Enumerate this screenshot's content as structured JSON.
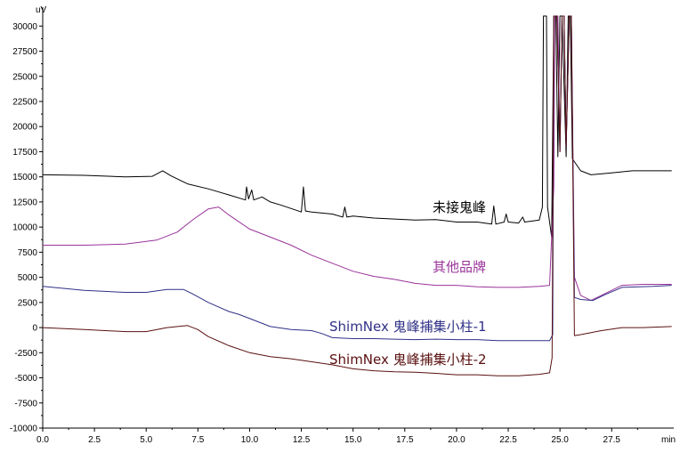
{
  "chart_data": {
    "type": "line",
    "ylabel": "uV",
    "xlabel": "min",
    "xlim": [
      0,
      30.5
    ],
    "ylim": [
      -10000,
      31000
    ],
    "x_ticks": [
      "0.0",
      "2.5",
      "5.0",
      "7.5",
      "10.0",
      "12.5",
      "15.0",
      "17.5",
      "20.0",
      "22.5",
      "25.0",
      "27.5"
    ],
    "y_ticks": [
      "30000",
      "27500",
      "25000",
      "22500",
      "20000",
      "17500",
      "15000",
      "12500",
      "10000",
      "7500",
      "5000",
      "2500",
      "0",
      "-2500",
      "-5000",
      "-7500",
      "-10000"
    ],
    "grid": false,
    "series": [
      {
        "name": "未接鬼峰",
        "color": "#000000",
        "points": [
          [
            0,
            15200
          ],
          [
            2,
            15150
          ],
          [
            4,
            15000
          ],
          [
            5.3,
            15050
          ],
          [
            5.8,
            15600
          ],
          [
            6.2,
            15100
          ],
          [
            7,
            14300
          ],
          [
            8,
            13800
          ],
          [
            9,
            13200
          ],
          [
            9.8,
            12700
          ],
          [
            9.85,
            14000
          ],
          [
            9.95,
            12800
          ],
          [
            10.1,
            13700
          ],
          [
            10.2,
            12700
          ],
          [
            10.6,
            13000
          ],
          [
            11,
            12500
          ],
          [
            11.5,
            12200
          ],
          [
            12.5,
            11500
          ],
          [
            12.6,
            14000
          ],
          [
            12.7,
            11600
          ],
          [
            13,
            11500
          ],
          [
            14,
            11300
          ],
          [
            14.5,
            11000
          ],
          [
            14.6,
            12000
          ],
          [
            14.7,
            11000
          ],
          [
            15,
            11100
          ],
          [
            16,
            10900
          ],
          [
            17,
            10800
          ],
          [
            18,
            10700
          ],
          [
            19,
            10750
          ],
          [
            20,
            10500
          ],
          [
            21,
            10500
          ],
          [
            21.7,
            10300
          ],
          [
            21.8,
            12100
          ],
          [
            21.9,
            10300
          ],
          [
            22.3,
            10500
          ],
          [
            22.4,
            11300
          ],
          [
            22.5,
            10500
          ],
          [
            23,
            10400
          ],
          [
            23.2,
            11000
          ],
          [
            23.3,
            10500
          ],
          [
            24,
            10700
          ],
          [
            24.15,
            12000
          ],
          [
            24.2,
            31000
          ],
          [
            24.35,
            31000
          ],
          [
            24.4,
            12000
          ],
          [
            24.6,
            9000
          ],
          [
            24.7,
            31000
          ],
          [
            24.8,
            31000
          ],
          [
            24.9,
            17000
          ],
          [
            25.0,
            31000
          ],
          [
            25.1,
            31000
          ],
          [
            25.3,
            17000
          ],
          [
            25.4,
            31000
          ],
          [
            25.5,
            31000
          ],
          [
            25.6,
            16800
          ],
          [
            26,
            15600
          ],
          [
            26.5,
            15200
          ],
          [
            27.5,
            15400
          ],
          [
            28.5,
            15600
          ],
          [
            29.5,
            15600
          ],
          [
            30.4,
            15600
          ]
        ]
      },
      {
        "name": "其他品牌",
        "color": "#993399",
        "points": [
          [
            0,
            8200
          ],
          [
            2,
            8200
          ],
          [
            4,
            8300
          ],
          [
            5.5,
            8700
          ],
          [
            6.5,
            9500
          ],
          [
            7.3,
            10800
          ],
          [
            8,
            11800
          ],
          [
            8.5,
            12000
          ],
          [
            9,
            11200
          ],
          [
            10,
            9800
          ],
          [
            11,
            9000
          ],
          [
            12,
            8200
          ],
          [
            13,
            7200
          ],
          [
            14,
            6400
          ],
          [
            15,
            5600
          ],
          [
            16,
            5100
          ],
          [
            17,
            4800
          ],
          [
            18,
            4400
          ],
          [
            19,
            4200
          ],
          [
            20,
            4200
          ],
          [
            21,
            4050
          ],
          [
            22,
            4000
          ],
          [
            23,
            4000
          ],
          [
            24,
            4100
          ],
          [
            24.5,
            4200
          ],
          [
            24.7,
            14000
          ],
          [
            24.75,
            31000
          ],
          [
            24.9,
            31000
          ],
          [
            25.0,
            17500
          ],
          [
            25.1,
            31000
          ],
          [
            25.2,
            31000
          ],
          [
            25.3,
            18000
          ],
          [
            25.45,
            31000
          ],
          [
            25.55,
            31000
          ],
          [
            25.7,
            5000
          ],
          [
            26,
            3200
          ],
          [
            26.5,
            2700
          ],
          [
            27,
            3200
          ],
          [
            28,
            4200
          ],
          [
            29,
            4300
          ],
          [
            30.4,
            4300
          ]
        ]
      },
      {
        "name": "ShimNex 鬼峰捕集小柱-1",
        "color": "#303088",
        "points": [
          [
            0,
            4100
          ],
          [
            2,
            3700
          ],
          [
            4,
            3500
          ],
          [
            5,
            3500
          ],
          [
            6,
            3800
          ],
          [
            6.8,
            3800
          ],
          [
            7.2,
            3400
          ],
          [
            8,
            2500
          ],
          [
            9,
            1600
          ],
          [
            9.5,
            1300
          ],
          [
            10,
            900
          ],
          [
            11,
            100
          ],
          [
            12,
            -200
          ],
          [
            13,
            -300
          ],
          [
            13.5,
            -600
          ],
          [
            14,
            -1000
          ],
          [
            15,
            -1100
          ],
          [
            16,
            -1100
          ],
          [
            17,
            -1150
          ],
          [
            18,
            -1200
          ],
          [
            19,
            -1150
          ],
          [
            20,
            -1200
          ],
          [
            21,
            -1200
          ],
          [
            22,
            -1300
          ],
          [
            23,
            -1300
          ],
          [
            24,
            -1300
          ],
          [
            24.5,
            -1300
          ],
          [
            24.65,
            -700
          ],
          [
            24.7,
            31000
          ],
          [
            24.85,
            31000
          ],
          [
            25.0,
            17500
          ],
          [
            25.1,
            31000
          ],
          [
            25.2,
            31000
          ],
          [
            25.3,
            18000
          ],
          [
            25.45,
            31000
          ],
          [
            25.55,
            31000
          ],
          [
            25.7,
            3000
          ],
          [
            26,
            2800
          ],
          [
            26.6,
            2700
          ],
          [
            27.2,
            3300
          ],
          [
            28,
            4000
          ],
          [
            29.5,
            4100
          ],
          [
            30.4,
            4200
          ]
        ]
      },
      {
        "name": "ShimNex 鬼峰捕集小柱-2",
        "color": "#5a1010",
        "points": [
          [
            0,
            0
          ],
          [
            2,
            -200
          ],
          [
            4,
            -400
          ],
          [
            5,
            -400
          ],
          [
            6,
            0
          ],
          [
            7,
            200
          ],
          [
            7.5,
            -200
          ],
          [
            8,
            -900
          ],
          [
            9,
            -1800
          ],
          [
            10,
            -2500
          ],
          [
            11,
            -2900
          ],
          [
            12,
            -3100
          ],
          [
            13,
            -3400
          ],
          [
            14,
            -3700
          ],
          [
            15,
            -4100
          ],
          [
            16,
            -4300
          ],
          [
            17,
            -4400
          ],
          [
            18,
            -4450
          ],
          [
            19,
            -4550
          ],
          [
            20,
            -4700
          ],
          [
            21,
            -4700
          ],
          [
            22,
            -4800
          ],
          [
            23,
            -4800
          ],
          [
            24,
            -4650
          ],
          [
            24.5,
            -4500
          ],
          [
            24.62,
            -3000
          ],
          [
            24.7,
            31000
          ],
          [
            24.85,
            31000
          ],
          [
            25.0,
            17500
          ],
          [
            25.1,
            31000
          ],
          [
            25.2,
            31000
          ],
          [
            25.3,
            18000
          ],
          [
            25.45,
            31000
          ],
          [
            25.55,
            31000
          ],
          [
            25.7,
            -800
          ],
          [
            26,
            -700
          ],
          [
            27,
            -300
          ],
          [
            28,
            0
          ],
          [
            29,
            0
          ],
          [
            30.4,
            100
          ]
        ]
      }
    ]
  }
}
